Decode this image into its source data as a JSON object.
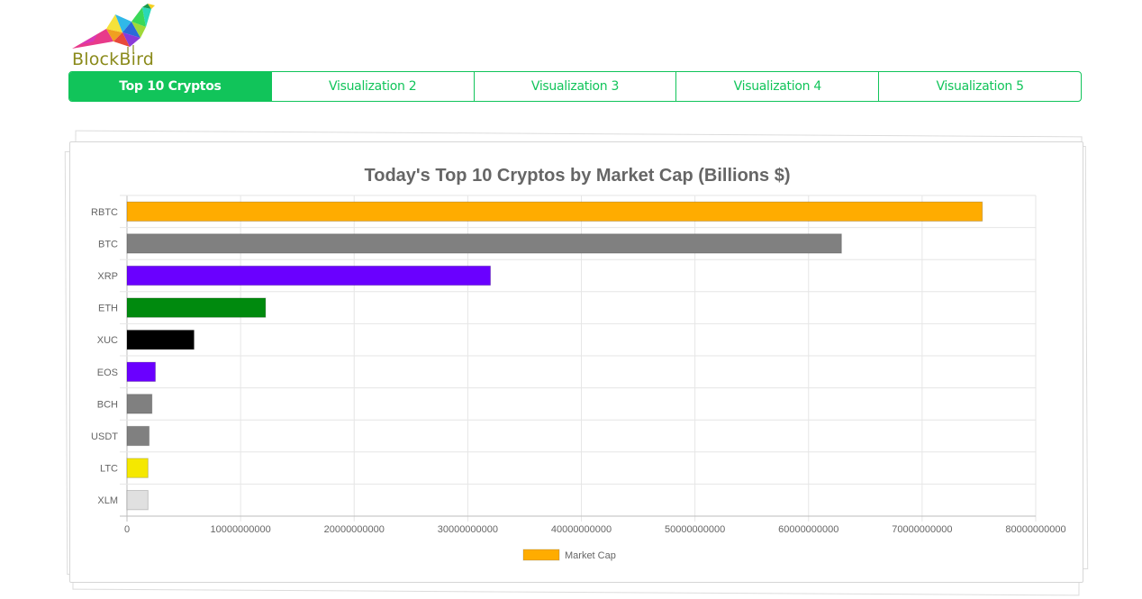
{
  "brand": {
    "name": "BlockBird",
    "logo_icon": "bird-logo-icon"
  },
  "tabs": [
    {
      "label": "Top 10 Cryptos",
      "active": true
    },
    {
      "label": "Visualization 2",
      "active": false
    },
    {
      "label": "Visualization 3",
      "active": false
    },
    {
      "label": "Visualization 4",
      "active": false
    },
    {
      "label": "Visualization 5",
      "active": false
    }
  ],
  "colors": {
    "accent": "#11c45a"
  },
  "chart_data": {
    "type": "bar",
    "orientation": "horizontal",
    "title": "Today's Top 10 Cryptos by Market Cap (Billions $)",
    "categories": [
      "RBTC",
      "BTC",
      "XRP",
      "ETH",
      "XUC",
      "EOS",
      "BCH",
      "USDT",
      "LTC",
      "XLM"
    ],
    "series": [
      {
        "name": "Market Cap",
        "values": [
          75300000000,
          62900000000,
          32000000000,
          12200000000,
          5900000000,
          2500000000,
          2200000000,
          1950000000,
          1850000000,
          1850000000
        ],
        "colors": [
          "#ffac00",
          "#808080",
          "#6a00ff",
          "#008a0e",
          "#000000",
          "#6a00ff",
          "#808080",
          "#808080",
          "#f5e800",
          "#e0e0e0"
        ]
      }
    ],
    "xlim": [
      0,
      80000000000
    ],
    "xticks": [
      0,
      10000000000,
      20000000000,
      30000000000,
      40000000000,
      50000000000,
      60000000000,
      70000000000,
      80000000000
    ],
    "xtick_labels": [
      "0",
      "10000000000",
      "20000000000",
      "30000000000",
      "40000000000",
      "50000000000",
      "60000000000",
      "70000000000",
      "80000000000"
    ],
    "grid": true,
    "legend": {
      "position": "bottom",
      "entries": [
        {
          "label": "Market Cap",
          "color": "#ffac00"
        }
      ]
    }
  }
}
